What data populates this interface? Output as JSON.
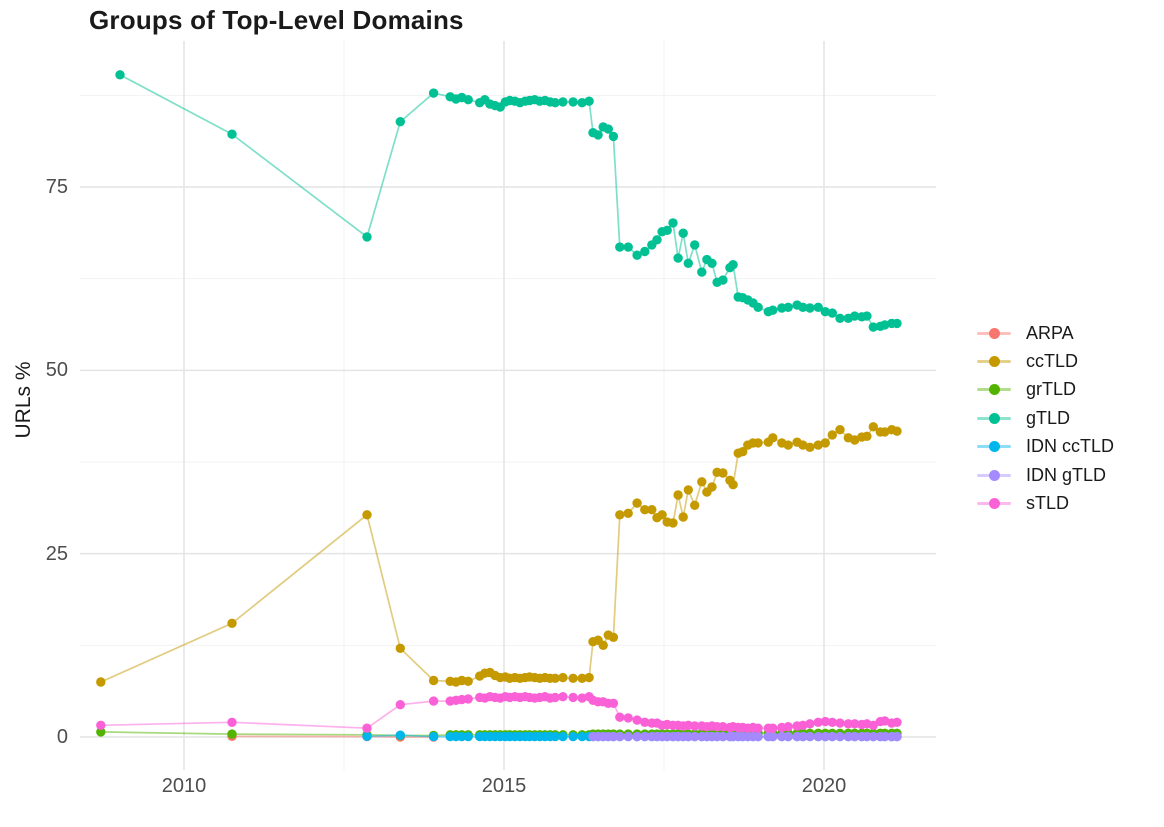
{
  "chart_data": {
    "type": "line",
    "title": "Groups of Top-Level Domains",
    "xlabel": "",
    "ylabel": "URLs %",
    "x_ticks": [
      2010,
      2015,
      2020
    ],
    "x_tick_labels": [
      "2010",
      "2015",
      "2020"
    ],
    "x_minor": [
      2012.5,
      2017.5
    ],
    "y_ticks": [
      0,
      25,
      50,
      75
    ],
    "y_tick_labels": [
      "0",
      "25",
      "50",
      "75"
    ],
    "y_minor": [
      12.5,
      37.5,
      62.5,
      87.5
    ],
    "xlim": [
      2008.1,
      2021.75
    ],
    "ylim": [
      -4.5,
      94.5
    ],
    "grid": true,
    "legend_position": "right",
    "marker": "point",
    "series": [
      {
        "name": "ARPA",
        "color": "#F8766D",
        "x": [
          2010.75,
          2012.86,
          2013.38,
          2013.9
        ],
        "y": [
          0.1,
          0.05,
          0.0,
          0.0
        ]
      },
      {
        "name": "ccTLD",
        "color": "#C49A00",
        "x": [
          2008.7,
          2010.75,
          2012.86,
          2013.38,
          2013.9,
          2014.16,
          2014.25,
          2014.34,
          2014.44,
          2014.62,
          2014.7,
          2014.78,
          2014.86,
          2014.94,
          2015.02,
          2015.09,
          2015.17,
          2015.25,
          2015.33,
          2015.4,
          2015.48,
          2015.56,
          2015.64,
          2015.72,
          2015.8,
          2015.92,
          2016.08,
          2016.22,
          2016.33,
          2016.39,
          2016.47,
          2016.55,
          2016.63,
          2016.71,
          2016.81,
          2016.94,
          2017.08,
          2017.2,
          2017.31,
          2017.39,
          2017.47,
          2017.55,
          2017.64,
          2017.72,
          2017.8,
          2017.88,
          2017.98,
          2018.09,
          2018.17,
          2018.25,
          2018.33,
          2018.42,
          2018.53,
          2018.58,
          2018.66,
          2018.73,
          2018.81,
          2018.89,
          2018.97,
          2019.13,
          2019.2,
          2019.34,
          2019.44,
          2019.58,
          2019.67,
          2019.78,
          2019.91,
          2020.02,
          2020.13,
          2020.25,
          2020.38,
          2020.48,
          2020.59,
          2020.67,
          2020.77,
          2020.88,
          2020.95,
          2021.06,
          2021.14
        ],
        "y": [
          7.5,
          15.5,
          30.3,
          12.1,
          7.7,
          7.6,
          7.5,
          7.7,
          7.6,
          8.3,
          8.7,
          8.8,
          8.4,
          8.1,
          8.2,
          8.0,
          8.1,
          8.0,
          8.1,
          8.2,
          8.1,
          8.0,
          8.1,
          8.0,
          8.0,
          8.1,
          8.0,
          8.0,
          8.1,
          13.0,
          13.2,
          12.5,
          13.9,
          13.6,
          30.3,
          30.5,
          31.9,
          31.0,
          31.0,
          29.9,
          30.3,
          29.3,
          29.2,
          33.0,
          30.0,
          33.7,
          31.6,
          34.8,
          33.4,
          34.1,
          36.1,
          36.0,
          35.0,
          34.4,
          38.7,
          38.9,
          39.8,
          40.1,
          40.1,
          40.2,
          40.8,
          40.1,
          39.8,
          40.2,
          39.8,
          39.5,
          39.8,
          40.1,
          41.2,
          41.9,
          40.8,
          40.5,
          40.9,
          41.0,
          42.3,
          41.6,
          41.6,
          41.9,
          41.7
        ]
      },
      {
        "name": "grTLD",
        "color": "#53B400",
        "x": [
          2008.7,
          2010.75,
          2012.86,
          2013.38,
          2013.9,
          2014.16,
          2014.25,
          2014.34,
          2014.44,
          2014.62,
          2014.7,
          2014.78,
          2014.86,
          2014.94,
          2015.02,
          2015.09,
          2015.17,
          2015.25,
          2015.33,
          2015.4,
          2015.48,
          2015.56,
          2015.64,
          2015.72,
          2015.8,
          2015.92,
          2016.08,
          2016.22,
          2016.33,
          2016.39,
          2016.47,
          2016.55,
          2016.63,
          2016.71,
          2016.81,
          2016.94,
          2017.08,
          2017.2,
          2017.31,
          2017.39,
          2017.47,
          2017.55,
          2017.64,
          2017.72,
          2017.8,
          2017.88,
          2017.98,
          2018.09,
          2018.17,
          2018.25,
          2018.33,
          2018.42,
          2018.53,
          2018.58,
          2018.66,
          2018.73,
          2018.81,
          2018.89,
          2018.97,
          2019.13,
          2019.2,
          2019.34,
          2019.44,
          2019.58,
          2019.67,
          2019.78,
          2019.91,
          2020.02,
          2020.13,
          2020.25,
          2020.38,
          2020.48,
          2020.59,
          2020.67,
          2020.77,
          2020.88,
          2020.95,
          2021.06,
          2021.14
        ],
        "y": [
          0.7,
          0.4,
          0.3,
          0.2,
          0.2,
          0.3,
          0.3,
          0.3,
          0.3,
          0.3,
          0.3,
          0.3,
          0.3,
          0.3,
          0.3,
          0.3,
          0.3,
          0.3,
          0.3,
          0.3,
          0.3,
          0.3,
          0.3,
          0.3,
          0.3,
          0.3,
          0.3,
          0.3,
          0.3,
          0.4,
          0.4,
          0.4,
          0.4,
          0.4,
          0.4,
          0.4,
          0.4,
          0.4,
          0.4,
          0.4,
          0.4,
          0.4,
          0.4,
          0.4,
          0.4,
          0.4,
          0.4,
          0.5,
          0.5,
          0.5,
          0.5,
          0.5,
          0.5,
          0.5,
          0.5,
          0.5,
          0.5,
          0.5,
          0.5,
          0.5,
          0.5,
          0.5,
          0.5,
          0.5,
          0.5,
          0.5,
          0.5,
          0.5,
          0.5,
          0.5,
          0.5,
          0.5,
          0.5,
          0.5,
          0.5,
          0.5,
          0.5,
          0.5,
          0.5
        ]
      },
      {
        "name": "gTLD",
        "color": "#00C094",
        "x": [
          2009.0,
          2010.75,
          2012.86,
          2013.38,
          2013.9,
          2014.16,
          2014.25,
          2014.34,
          2014.44,
          2014.62,
          2014.7,
          2014.78,
          2014.86,
          2014.94,
          2015.02,
          2015.09,
          2015.17,
          2015.25,
          2015.33,
          2015.4,
          2015.48,
          2015.56,
          2015.64,
          2015.72,
          2015.8,
          2015.92,
          2016.08,
          2016.22,
          2016.33,
          2016.39,
          2016.47,
          2016.55,
          2016.63,
          2016.71,
          2016.81,
          2016.94,
          2017.08,
          2017.2,
          2017.31,
          2017.39,
          2017.47,
          2017.55,
          2017.64,
          2017.72,
          2017.8,
          2017.88,
          2017.98,
          2018.09,
          2018.17,
          2018.25,
          2018.33,
          2018.42,
          2018.53,
          2018.58,
          2018.66,
          2018.73,
          2018.81,
          2018.89,
          2018.97,
          2019.13,
          2019.2,
          2019.34,
          2019.44,
          2019.58,
          2019.67,
          2019.78,
          2019.91,
          2020.02,
          2020.13,
          2020.25,
          2020.38,
          2020.48,
          2020.59,
          2020.67,
          2020.77,
          2020.88,
          2020.95,
          2021.06,
          2021.14
        ],
        "y": [
          90.3,
          82.2,
          68.2,
          83.9,
          87.8,
          87.3,
          87.0,
          87.2,
          86.9,
          86.5,
          86.9,
          86.3,
          86.1,
          85.9,
          86.6,
          86.8,
          86.7,
          86.5,
          86.7,
          86.8,
          86.9,
          86.7,
          86.8,
          86.6,
          86.5,
          86.6,
          86.6,
          86.5,
          86.7,
          82.4,
          82.1,
          83.2,
          82.9,
          81.9,
          66.8,
          66.8,
          65.7,
          66.2,
          67.1,
          67.8,
          68.9,
          69.1,
          70.1,
          65.3,
          68.7,
          64.6,
          67.1,
          63.4,
          65.1,
          64.6,
          62.0,
          62.3,
          64.0,
          64.4,
          60.0,
          59.9,
          59.6,
          59.2,
          58.6,
          58.0,
          58.2,
          58.5,
          58.6,
          58.9,
          58.6,
          58.5,
          58.6,
          58.0,
          57.8,
          57.1,
          57.1,
          57.4,
          57.3,
          57.4,
          55.9,
          56.0,
          56.2,
          56.4,
          56.4
        ]
      },
      {
        "name": "IDN ccTLD",
        "color": "#00B6EB",
        "x": [
          2012.86,
          2013.38,
          2013.9,
          2014.16,
          2014.25,
          2014.34,
          2014.44,
          2014.62,
          2014.7,
          2014.78,
          2014.86,
          2014.94,
          2015.02,
          2015.09,
          2015.17,
          2015.25,
          2015.33,
          2015.4,
          2015.48,
          2015.56,
          2015.64,
          2015.72,
          2015.8,
          2015.92,
          2016.08,
          2016.22,
          2016.33,
          2016.39,
          2016.47,
          2016.55,
          2016.63,
          2016.71,
          2016.81,
          2016.94,
          2017.08,
          2017.2,
          2017.31,
          2017.39,
          2017.47,
          2017.55,
          2017.64,
          2017.72,
          2017.8,
          2017.88,
          2017.98,
          2018.09,
          2018.17,
          2018.25,
          2018.33,
          2018.42,
          2018.53,
          2018.58,
          2018.66,
          2018.73,
          2018.81,
          2018.89,
          2018.97,
          2019.13,
          2019.2,
          2019.34,
          2019.44,
          2019.58,
          2019.67,
          2019.78,
          2019.91,
          2020.02,
          2020.13,
          2020.25,
          2020.38,
          2020.48,
          2020.59,
          2020.67,
          2020.77,
          2020.88,
          2020.95,
          2021.06,
          2021.14
        ],
        "y": [
          0.1,
          0.25,
          0.05,
          0.05,
          0.05,
          0.05,
          0.05,
          0.05,
          0.05,
          0.05,
          0.05,
          0.05,
          0.05,
          0.05,
          0.05,
          0.05,
          0.05,
          0.05,
          0.05,
          0.05,
          0.05,
          0.05,
          0.05,
          0.05,
          0.05,
          0.05,
          0.05,
          0.05,
          0.05,
          0.05,
          0.05,
          0.05,
          0.05,
          0.05,
          0.05,
          0.05,
          0.05,
          0.05,
          0.05,
          0.05,
          0.05,
          0.05,
          0.05,
          0.05,
          0.05,
          0.05,
          0.05,
          0.05,
          0.05,
          0.05,
          0.05,
          0.05,
          0.05,
          0.05,
          0.05,
          0.05,
          0.05,
          0.05,
          0.05,
          0.05,
          0.05,
          0.05,
          0.05,
          0.05,
          0.05,
          0.05,
          0.05,
          0.05,
          0.05,
          0.05,
          0.05,
          0.05,
          0.05,
          0.05,
          0.05,
          0.05,
          0.05
        ]
      },
      {
        "name": "IDN gTLD",
        "color": "#A58AFF",
        "x": [
          2016.39,
          2016.47,
          2016.55,
          2016.63,
          2016.71,
          2016.81,
          2016.94,
          2017.08,
          2017.2,
          2017.31,
          2017.39,
          2017.47,
          2017.55,
          2017.64,
          2017.72,
          2017.8,
          2017.88,
          2017.98,
          2018.09,
          2018.17,
          2018.25,
          2018.33,
          2018.42,
          2018.53,
          2018.58,
          2018.66,
          2018.73,
          2018.81,
          2018.89,
          2018.97,
          2019.13,
          2019.2,
          2019.34,
          2019.44,
          2019.58,
          2019.67,
          2019.78,
          2019.91,
          2020.02,
          2020.13,
          2020.25,
          2020.38,
          2020.48,
          2020.59,
          2020.67,
          2020.77,
          2020.88,
          2020.95,
          2021.06,
          2021.14
        ],
        "y": [
          0.05,
          0.05,
          0.05,
          0.05,
          0.05,
          0.05,
          0.05,
          0.05,
          0.05,
          0.05,
          0.05,
          0.05,
          0.05,
          0.05,
          0.05,
          0.05,
          0.05,
          0.05,
          0.05,
          0.05,
          0.05,
          0.05,
          0.05,
          0.05,
          0.05,
          0.05,
          0.05,
          0.05,
          0.05,
          0.05,
          0.05,
          0.05,
          0.05,
          0.05,
          0.05,
          0.05,
          0.05,
          0.05,
          0.05,
          0.05,
          0.05,
          0.05,
          0.05,
          0.05,
          0.05,
          0.05,
          0.05,
          0.05,
          0.05,
          0.05
        ]
      },
      {
        "name": "sTLD",
        "color": "#FB61D7",
        "x": [
          2008.7,
          2010.75,
          2012.86,
          2013.38,
          2013.9,
          2014.16,
          2014.25,
          2014.34,
          2014.44,
          2014.62,
          2014.7,
          2014.78,
          2014.86,
          2014.94,
          2015.02,
          2015.09,
          2015.17,
          2015.25,
          2015.33,
          2015.4,
          2015.48,
          2015.56,
          2015.64,
          2015.72,
          2015.8,
          2015.92,
          2016.08,
          2016.22,
          2016.33,
          2016.39,
          2016.47,
          2016.55,
          2016.63,
          2016.71,
          2016.81,
          2016.94,
          2017.08,
          2017.2,
          2017.31,
          2017.39,
          2017.47,
          2017.55,
          2017.64,
          2017.72,
          2017.8,
          2017.88,
          2017.98,
          2018.09,
          2018.17,
          2018.25,
          2018.33,
          2018.42,
          2018.53,
          2018.58,
          2018.66,
          2018.73,
          2018.81,
          2018.89,
          2018.97,
          2019.13,
          2019.2,
          2019.34,
          2019.44,
          2019.58,
          2019.67,
          2019.78,
          2019.91,
          2020.02,
          2020.13,
          2020.25,
          2020.38,
          2020.48,
          2020.59,
          2020.67,
          2020.77,
          2020.88,
          2020.95,
          2021.06,
          2021.14
        ],
        "y": [
          1.6,
          2.0,
          1.2,
          4.4,
          4.9,
          4.9,
          5.0,
          5.1,
          5.2,
          5.4,
          5.3,
          5.5,
          5.4,
          5.3,
          5.5,
          5.4,
          5.5,
          5.4,
          5.5,
          5.4,
          5.3,
          5.4,
          5.5,
          5.3,
          5.4,
          5.5,
          5.4,
          5.3,
          5.5,
          5.0,
          4.8,
          4.8,
          4.6,
          4.6,
          2.7,
          2.6,
          2.3,
          2.0,
          1.9,
          1.9,
          1.6,
          1.7,
          1.6,
          1.6,
          1.5,
          1.6,
          1.5,
          1.5,
          1.4,
          1.5,
          1.4,
          1.4,
          1.3,
          1.4,
          1.3,
          1.3,
          1.2,
          1.3,
          1.2,
          1.2,
          1.2,
          1.3,
          1.4,
          1.5,
          1.6,
          1.8,
          2.0,
          2.1,
          2.0,
          1.9,
          1.8,
          1.8,
          1.7,
          1.8,
          1.6,
          2.1,
          2.2,
          1.9,
          2.0
        ]
      }
    ],
    "style": {
      "major_grid_color": "#e4e4e4",
      "minor_grid_color": "#f1f1f1",
      "background": "#ffffff",
      "tick_label_color": "#4d4d4d",
      "title_color": "#1a1a1a"
    }
  }
}
